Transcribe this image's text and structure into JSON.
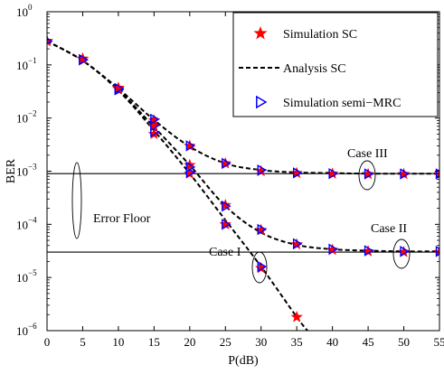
{
  "chart_data": {
    "type": "scatter",
    "title": "",
    "xlabel": "P(dB)",
    "ylabel": "BER",
    "xlim": [
      0,
      55
    ],
    "ylim_exponent": [
      -6,
      0
    ],
    "yscale": "log",
    "grid": false,
    "x_ticks": [
      0,
      5,
      10,
      15,
      20,
      25,
      30,
      35,
      40,
      45,
      50,
      55
    ],
    "y_ticks": [
      {
        "base": "10",
        "exp": "0",
        "value": 1
      },
      {
        "base": "10",
        "exp": "−1",
        "value": 0.1
      },
      {
        "base": "10",
        "exp": "−2",
        "value": 0.01
      },
      {
        "base": "10",
        "exp": "−3",
        "value": 0.001
      },
      {
        "base": "10",
        "exp": "−4",
        "value": 0.0001
      },
      {
        "base": "10",
        "exp": "−5",
        "value": 1e-05
      },
      {
        "base": "10",
        "exp": "−6",
        "value": 1e-06
      }
    ],
    "legend": {
      "placement": "top-right",
      "entries": [
        {
          "label": "Simulation SC",
          "marker": "star",
          "color": "#ff0000"
        },
        {
          "label": "Analysis SC",
          "marker": "dashed-line",
          "color": "#000000"
        },
        {
          "label": "Simulation semi−MRC",
          "marker": "triangle-right",
          "color": "#0000ff"
        }
      ]
    },
    "reference_lines": [
      {
        "y": 0.0009
      },
      {
        "y": 3e-05
      }
    ],
    "annotations": {
      "error_floor": "Error Floor",
      "case1": "Case I",
      "case2": "Case II",
      "case3": "Case III"
    },
    "series": [
      {
        "case": "Case I",
        "analysis_x": [
          0,
          5,
          10,
          15,
          20,
          25,
          30,
          35,
          36.5
        ],
        "analysis_y": [
          0.28,
          0.12,
          0.033,
          0.0058,
          0.0009,
          0.00012,
          1.6e-05,
          1.8e-06,
          1e-06
        ],
        "sim_sc_x": [
          0,
          5,
          10,
          15,
          20,
          25,
          30,
          35
        ],
        "sim_sc_y": [
          0.28,
          0.13,
          0.035,
          0.005,
          0.0009,
          0.0001,
          1.5e-05,
          1.8e-06
        ],
        "sim_mrc_x": [
          0,
          5,
          10,
          15,
          20,
          25,
          30
        ],
        "sim_mrc_y": [
          0.28,
          0.125,
          0.034,
          0.0055,
          0.00095,
          0.0001,
          1.6e-05
        ]
      },
      {
        "case": "Case II",
        "analysis_x": [
          0,
          5,
          10,
          15,
          20,
          25,
          30,
          35,
          40,
          45,
          50,
          55
        ],
        "analysis_y": [
          0.28,
          0.12,
          0.034,
          0.0068,
          0.0013,
          0.00022,
          7e-05,
          4.1e-05,
          3.4e-05,
          3.2e-05,
          3.1e-05,
          3.1e-05
        ],
        "sim_sc_x": [
          0,
          5,
          10,
          15,
          20,
          25,
          30,
          35,
          40,
          45,
          50,
          55
        ],
        "sim_sc_y": [
          0.28,
          0.13,
          0.036,
          0.007,
          0.0013,
          0.00023,
          7.8e-05,
          4.2e-05,
          3.3e-05,
          3.1e-05,
          3e-05,
          3e-05
        ],
        "sim_mrc_x": [
          0,
          5,
          10,
          15,
          20,
          25,
          30,
          35,
          40,
          45,
          50,
          55
        ],
        "sim_mrc_y": [
          0.28,
          0.125,
          0.035,
          0.0072,
          0.0012,
          0.00022,
          8e-05,
          4.3e-05,
          3.4e-05,
          3.2e-05,
          3.1e-05,
          3.1e-05
        ]
      },
      {
        "case": "Case III",
        "analysis_x": [
          0,
          5,
          10,
          15,
          20,
          25,
          30,
          35,
          40,
          45,
          50,
          55
        ],
        "analysis_y": [
          0.28,
          0.12,
          0.036,
          0.0092,
          0.0029,
          0.0014,
          0.00105,
          0.00095,
          0.00092,
          0.0009,
          0.0009,
          0.0009
        ],
        "sim_sc_x": [
          0,
          5,
          10,
          15,
          20,
          25,
          30,
          35,
          40,
          45,
          50,
          55
        ],
        "sim_sc_y": [
          0.28,
          0.13,
          0.037,
          0.009,
          0.003,
          0.0014,
          0.001,
          0.00092,
          0.0009,
          0.00088,
          0.00088,
          0.00088
        ],
        "sim_mrc_x": [
          0,
          5,
          10,
          15,
          20,
          25,
          30,
          35,
          40,
          45,
          50,
          55
        ],
        "sim_mrc_y": [
          0.28,
          0.125,
          0.036,
          0.0095,
          0.003,
          0.0014,
          0.00105,
          0.00093,
          0.0009,
          0.00089,
          0.00089,
          0.00089
        ]
      }
    ]
  }
}
